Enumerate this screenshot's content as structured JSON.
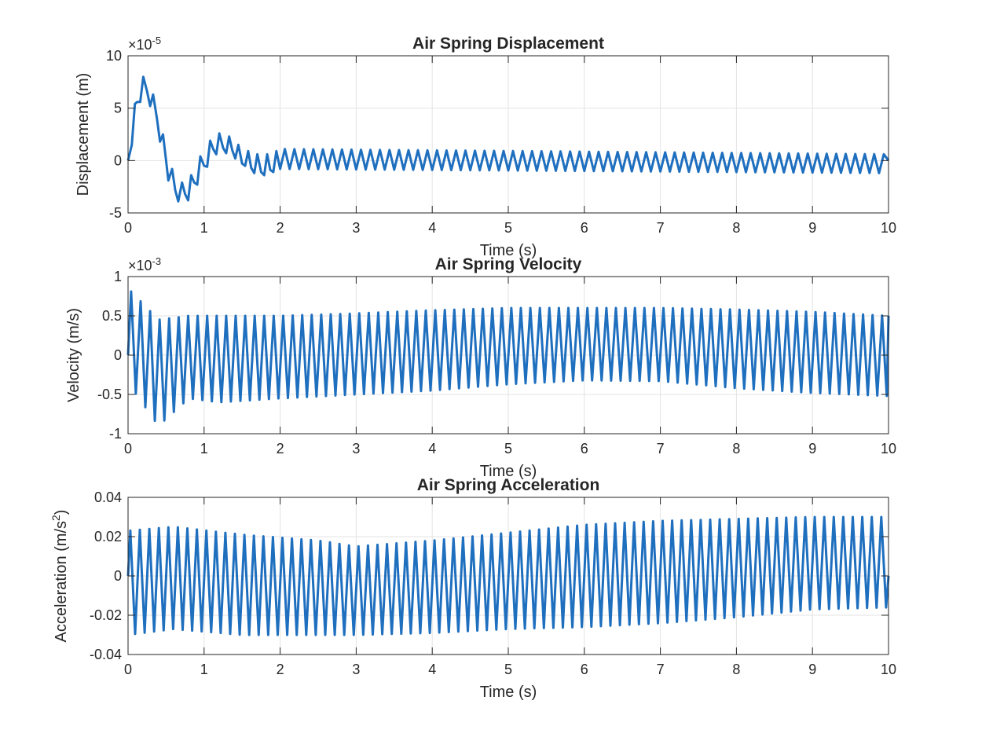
{
  "figure": {
    "line_color": "#1f6fbf",
    "grid": true
  },
  "chart_data": [
    {
      "type": "line",
      "title": "Air Spring Displacement",
      "xlabel": "Time (s)",
      "ylabel": "Displacement (m)",
      "exponent_base": "×10",
      "exponent_power": "-5",
      "xlim": [
        0,
        10
      ],
      "ylim": [
        -5,
        10
      ],
      "xticks": [
        0,
        1,
        2,
        3,
        4,
        5,
        6,
        7,
        8,
        9,
        10
      ],
      "yticks": [
        -5,
        0,
        5,
        10
      ],
      "series": [
        {
          "x": [
            0,
            0.05,
            0.09,
            0.12,
            0.16,
            0.2,
            0.25,
            0.29,
            0.33,
            0.38,
            0.42,
            0.46,
            0.5,
            0.53,
            0.58,
            0.62,
            0.66,
            0.71,
            0.75,
            0.79,
            0.83,
            0.87,
            0.91,
            0.95,
            1.0,
            1.04,
            1.08,
            1.12,
            1.16,
            1.2,
            1.25,
            1.29,
            1.33,
            1.37,
            1.41,
            1.45,
            1.5,
            1.54,
            1.58,
            1.62,
            1.66,
            1.7,
            1.75,
            1.79,
            1.83,
            1.87,
            1.91,
            1.95
          ],
          "y": [
            0,
            1.5,
            5.4,
            5.6,
            5.6,
            8.0,
            6.6,
            5.2,
            6.3,
            4.0,
            1.8,
            2.5,
            0,
            -1.9,
            -0.8,
            -2.8,
            -3.9,
            -2.1,
            -3.2,
            -3.8,
            -1.4,
            -2.1,
            -2.3,
            0.4,
            -0.5,
            -0.6,
            1.9,
            1.1,
            0.6,
            2.6,
            1.2,
            0.7,
            2.3,
            1.0,
            0.2,
            1.5,
            -0.3,
            -0.5,
            0.9,
            -0.7,
            -1.2,
            0.6,
            -1.1,
            -1.4,
            0.6,
            -0.9,
            -1.1,
            0.9
          ],
          "oscillation_after_2s": {
            "period_s": 0.125,
            "upper": 1.1,
            "lower": -0.8,
            "upper_at_10s": 0.6,
            "lower_at_10s": -1.2
          }
        }
      ]
    },
    {
      "type": "line",
      "title": "Air Spring Velocity",
      "xlabel": "Time (s)",
      "ylabel": "Velocity (m/s)",
      "exponent_base": "×10",
      "exponent_power": "-3",
      "xlim": [
        0,
        10
      ],
      "ylim": [
        -1,
        1
      ],
      "xticks": [
        0,
        1,
        2,
        3,
        4,
        5,
        6,
        7,
        8,
        9,
        10
      ],
      "yticks": [
        -1,
        -0.5,
        0,
        0.5,
        1
      ],
      "yticklabels": [
        "-1",
        "-0.5",
        "0",
        "0.5",
        "1"
      ],
      "series": [
        {
          "envelope": [
            {
              "t": 0.0,
              "upper": 0.85,
              "lower": -0.35
            },
            {
              "t": 0.4,
              "upper": 0.45,
              "lower": -0.9
            },
            {
              "t": 0.8,
              "upper": 0.5,
              "lower": -0.55
            },
            {
              "t": 1.2,
              "upper": 0.5,
              "lower": -0.6
            },
            {
              "t": 2.0,
              "upper": 0.5,
              "lower": -0.55
            },
            {
              "t": 3.0,
              "upper": 0.53,
              "lower": -0.5
            },
            {
              "t": 4.0,
              "upper": 0.57,
              "lower": -0.45
            },
            {
              "t": 5.0,
              "upper": 0.6,
              "lower": -0.37
            },
            {
              "t": 6.0,
              "upper": 0.6,
              "lower": -0.32
            },
            {
              "t": 7.0,
              "upper": 0.6,
              "lower": -0.33
            },
            {
              "t": 8.0,
              "upper": 0.58,
              "lower": -0.42
            },
            {
              "t": 9.0,
              "upper": 0.55,
              "lower": -0.48
            },
            {
              "t": 10.0,
              "upper": 0.5,
              "lower": -0.52
            }
          ],
          "period_s": 0.125,
          "end_value": 0.5
        }
      ]
    },
    {
      "type": "line",
      "title": "Air Spring Acceleration",
      "xlabel": "Time (s)",
      "ylabel_main": "Acceleration  (m/s",
      "ylabel_sup": "2",
      "ylabel_close": ")",
      "xlim": [
        0,
        10
      ],
      "ylim": [
        -0.04,
        0.04
      ],
      "xticks": [
        0,
        1,
        2,
        3,
        4,
        5,
        6,
        7,
        8,
        9,
        10
      ],
      "yticks": [
        -0.04,
        -0.02,
        0,
        0.02,
        0.04
      ],
      "yticklabels": [
        "-0.04",
        "-0.02",
        "0",
        "0.02",
        "0.04"
      ],
      "series": [
        {
          "envelope": [
            {
              "t": 0.0,
              "upper": 0.023,
              "lower": -0.03
            },
            {
              "t": 0.6,
              "upper": 0.025,
              "lower": -0.027
            },
            {
              "t": 1.5,
              "upper": 0.021,
              "lower": -0.03
            },
            {
              "t": 2.5,
              "upper": 0.018,
              "lower": -0.03
            },
            {
              "t": 3.0,
              "upper": 0.015,
              "lower": -0.03
            },
            {
              "t": 4.0,
              "upper": 0.018,
              "lower": -0.029
            },
            {
              "t": 5.0,
              "upper": 0.022,
              "lower": -0.027
            },
            {
              "t": 6.0,
              "upper": 0.026,
              "lower": -0.026
            },
            {
              "t": 7.0,
              "upper": 0.028,
              "lower": -0.024
            },
            {
              "t": 8.0,
              "upper": 0.029,
              "lower": -0.021
            },
            {
              "t": 9.0,
              "upper": 0.03,
              "lower": -0.017
            },
            {
              "t": 10.0,
              "upper": 0.03,
              "lower": -0.016
            }
          ],
          "period_s": 0.125,
          "end_value": 0.0
        }
      ]
    }
  ]
}
